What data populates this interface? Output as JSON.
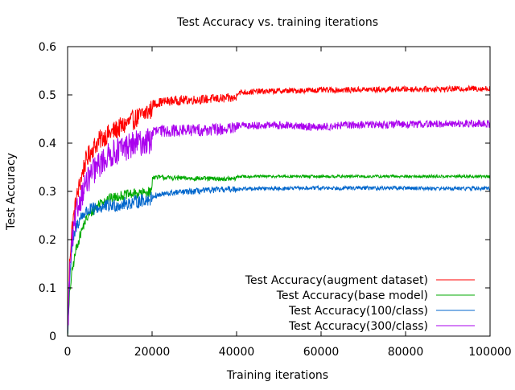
{
  "chart_data": {
    "type": "line",
    "title": "Test Accuracy vs. training iterations",
    "xlabel": "Training iterations",
    "ylabel": "Test Accuracy",
    "xlim": [
      0,
      100000
    ],
    "ylim": [
      0,
      0.6
    ],
    "x_ticks": [
      0,
      20000,
      40000,
      60000,
      80000,
      100000
    ],
    "x_tick_labels": [
      "0",
      "20000",
      "40000",
      "60000",
      "80000",
      "100000"
    ],
    "y_ticks": [
      0,
      0.1,
      0.2,
      0.3,
      0.4,
      0.5,
      0.6
    ],
    "y_tick_labels": [
      "0",
      "0.1",
      "0.2",
      "0.3",
      "0.4",
      "0.5",
      "0.6"
    ],
    "grid": false,
    "legend_position": "bottom-right",
    "series": [
      {
        "name": "Test Accuracy(augment dataset)",
        "color": "#ff0000",
        "x": [
          0,
          500,
          1000,
          2000,
          3000,
          4000,
          5000,
          6000,
          7000,
          8000,
          10000,
          12000,
          14000,
          16000,
          18000,
          19900,
          20100,
          22000,
          25000,
          30000,
          35000,
          39900,
          40100,
          45000,
          50000,
          55000,
          60000,
          65000,
          70000,
          75000,
          80000,
          85000,
          90000,
          95000,
          100000
        ],
        "y": [
          0.0,
          0.16,
          0.22,
          0.28,
          0.32,
          0.355,
          0.375,
          0.39,
          0.4,
          0.41,
          0.42,
          0.43,
          0.44,
          0.45,
          0.46,
          0.47,
          0.48,
          0.485,
          0.488,
          0.49,
          0.492,
          0.493,
          0.505,
          0.507,
          0.508,
          0.509,
          0.51,
          0.51,
          0.511,
          0.511,
          0.512,
          0.512,
          0.512,
          0.513,
          0.513
        ],
        "noise": 0.006
      },
      {
        "name": "Test Accuracy(base model)",
        "color": "#00aa00",
        "x": [
          0,
          500,
          1000,
          2000,
          3000,
          4000,
          5000,
          6000,
          7000,
          8000,
          10000,
          12000,
          14000,
          16000,
          18000,
          19900,
          20100,
          22000,
          25000,
          30000,
          35000,
          39900,
          40100,
          45000,
          50000,
          60000,
          70000,
          80000,
          90000,
          100000
        ],
        "y": [
          0.0,
          0.09,
          0.13,
          0.18,
          0.21,
          0.235,
          0.25,
          0.26,
          0.27,
          0.28,
          0.285,
          0.29,
          0.293,
          0.295,
          0.297,
          0.3,
          0.33,
          0.329,
          0.328,
          0.327,
          0.326,
          0.326,
          0.331,
          0.331,
          0.331,
          0.331,
          0.331,
          0.331,
          0.331,
          0.331
        ],
        "noise": 0.003
      },
      {
        "name": "Test Accuracy(100/class)",
        "color": "#0066cc",
        "x": [
          0,
          500,
          1000,
          2000,
          3000,
          4000,
          5000,
          6000,
          7000,
          8000,
          10000,
          12000,
          14000,
          16000,
          18000,
          19900,
          20100,
          22000,
          25000,
          30000,
          35000,
          40000,
          45000,
          50000,
          60000,
          70000,
          80000,
          90000,
          100000
        ],
        "y": [
          0.0,
          0.12,
          0.18,
          0.225,
          0.245,
          0.255,
          0.26,
          0.263,
          0.265,
          0.267,
          0.27,
          0.272,
          0.275,
          0.278,
          0.282,
          0.285,
          0.29,
          0.293,
          0.297,
          0.3,
          0.303,
          0.305,
          0.306,
          0.306,
          0.307,
          0.307,
          0.307,
          0.306,
          0.306
        ],
        "noise": 0.004
      },
      {
        "name": "Test Accuracy(300/class)",
        "color": "#aa00ee",
        "x": [
          0,
          500,
          1000,
          2000,
          3000,
          4000,
          5000,
          6000,
          7000,
          8000,
          10000,
          12000,
          14000,
          16000,
          18000,
          19900,
          20100,
          22000,
          25000,
          30000,
          35000,
          39900,
          40100,
          45000,
          50000,
          55000,
          60000,
          65000,
          70000,
          80000,
          90000,
          100000
        ],
        "y": [
          0.0,
          0.13,
          0.19,
          0.25,
          0.285,
          0.31,
          0.325,
          0.34,
          0.35,
          0.36,
          0.375,
          0.385,
          0.392,
          0.398,
          0.402,
          0.405,
          0.423,
          0.425,
          0.426,
          0.427,
          0.428,
          0.43,
          0.436,
          0.437,
          0.437,
          0.435,
          0.433,
          0.437,
          0.438,
          0.439,
          0.44,
          0.44
        ],
        "noise": 0.008
      }
    ]
  }
}
